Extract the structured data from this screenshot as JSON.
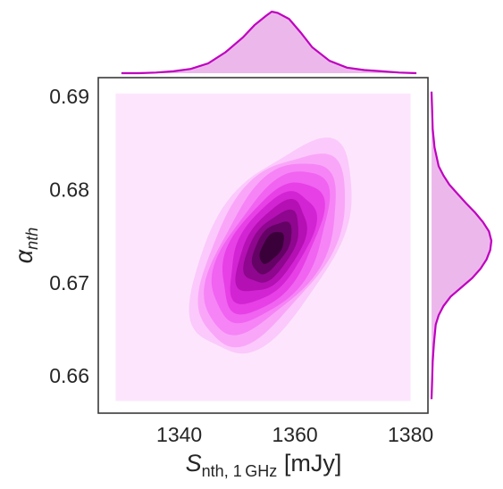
{
  "chart_data": {
    "type": "kde-jointplot",
    "xlabel": {
      "main": "S",
      "sub": "nth, 1 GHz",
      "unit": "[mJy]"
    },
    "ylabel": {
      "main": "α",
      "sub": "nth"
    },
    "xlim": [
      1326,
      1383
    ],
    "ylim": [
      0.656,
      0.692
    ],
    "xticks": [
      1340,
      1360,
      1380
    ],
    "yticks": [
      0.66,
      0.67,
      0.68,
      0.69
    ],
    "xtick_labels": [
      "1340",
      "1360",
      "1380"
    ],
    "ytick_labels": [
      "0.66",
      "0.67",
      "0.68",
      "0.69"
    ],
    "grid": false,
    "color": "#bf00bf",
    "fill_color": "#ecb8ec",
    "background_fill": "#fde6fd",
    "joint": {
      "center": [
        1356,
        0.6738
      ],
      "sd": [
        5.2,
        0.0042
      ],
      "correlation": 0.55,
      "levels": 10,
      "bbox": {
        "x": [
          1329,
          1380
        ],
        "y": [
          0.6573,
          0.6903
        ]
      }
    },
    "marginal_x": {
      "x": [
        1330,
        1333,
        1336,
        1339,
        1342,
        1345,
        1348,
        1351,
        1353,
        1355,
        1356,
        1357,
        1359,
        1361,
        1363,
        1366,
        1369,
        1372,
        1375,
        1378,
        1381
      ],
      "density": [
        0.0,
        0.0,
        0.01,
        0.03,
        0.07,
        0.16,
        0.34,
        0.58,
        0.78,
        0.93,
        1.0,
        0.98,
        0.88,
        0.66,
        0.42,
        0.2,
        0.09,
        0.05,
        0.03,
        0.01,
        0.0
      ]
    },
    "marginal_y": {
      "y": [
        0.6575,
        0.6595,
        0.6615,
        0.6635,
        0.6655,
        0.6665,
        0.6675,
        0.6685,
        0.6695,
        0.6705,
        0.6715,
        0.6725,
        0.6735,
        0.6745,
        0.6755,
        0.6765,
        0.6775,
        0.6785,
        0.6795,
        0.6805,
        0.6815,
        0.6825,
        0.6845,
        0.6865,
        0.6885,
        0.6905
      ],
      "density": [
        0.0,
        0.01,
        0.02,
        0.04,
        0.07,
        0.12,
        0.2,
        0.32,
        0.5,
        0.68,
        0.82,
        0.92,
        0.98,
        1.0,
        0.96,
        0.86,
        0.73,
        0.58,
        0.44,
        0.3,
        0.2,
        0.12,
        0.05,
        0.02,
        0.01,
        0.0
      ]
    }
  }
}
